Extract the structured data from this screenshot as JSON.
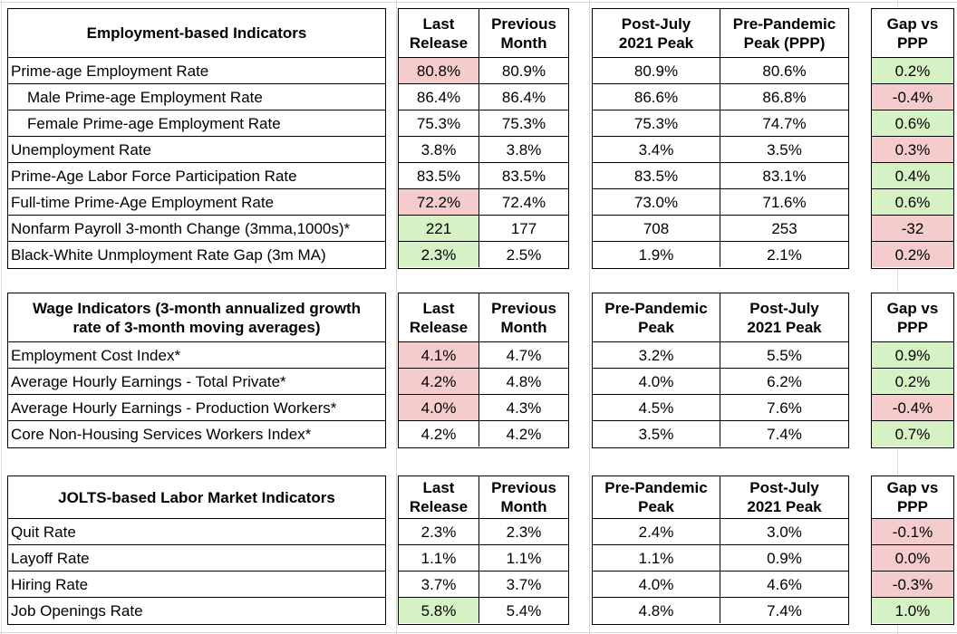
{
  "colors": {
    "pink": "#f4cccc",
    "green": "#d6f2c4",
    "border": "#000000",
    "gridline": "#d9d9d9"
  },
  "tables": [
    {
      "title": "Employment-based Indicators",
      "col_headers": [
        "Last\nRelease",
        "Previous\nMonth",
        "Post-July\n2021 Peak",
        "Pre-Pandemic\nPeak (PPP)",
        "Gap vs\nPPP"
      ],
      "rows": [
        {
          "label": "Prime-age Employment Rate",
          "indent": false,
          "values": [
            "80.8%",
            "80.9%",
            "80.9%",
            "80.6%",
            "0.2%"
          ],
          "highlights": [
            "pink",
            null,
            null,
            null,
            "green"
          ]
        },
        {
          "label": "Male Prime-age Employment Rate",
          "indent": true,
          "values": [
            "86.4%",
            "86.4%",
            "86.6%",
            "86.8%",
            "-0.4%"
          ],
          "highlights": [
            null,
            null,
            null,
            null,
            "pink"
          ]
        },
        {
          "label": "Female Prime-age Employment Rate",
          "indent": true,
          "values": [
            "75.3%",
            "75.3%",
            "75.3%",
            "74.7%",
            "0.6%"
          ],
          "highlights": [
            null,
            null,
            null,
            null,
            "green"
          ]
        },
        {
          "label": "Unemployment Rate",
          "indent": false,
          "values": [
            "3.8%",
            "3.8%",
            "3.4%",
            "3.5%",
            "0.3%"
          ],
          "highlights": [
            null,
            null,
            null,
            null,
            "pink"
          ]
        },
        {
          "label": "Prime-Age Labor Force Participation Rate",
          "indent": false,
          "values": [
            "83.5%",
            "83.5%",
            "83.5%",
            "83.1%",
            "0.4%"
          ],
          "highlights": [
            null,
            null,
            null,
            null,
            "green"
          ]
        },
        {
          "label": "Full-time Prime-Age Employment Rate",
          "indent": false,
          "values": [
            "72.2%",
            "72.4%",
            "73.0%",
            "71.6%",
            "0.6%"
          ],
          "highlights": [
            "pink",
            null,
            null,
            null,
            "green"
          ]
        },
        {
          "label": "Nonfarm Payroll 3-month Change (3mma,1000s)*",
          "indent": false,
          "values": [
            "221",
            "177",
            "708",
            "253",
            "-32"
          ],
          "highlights": [
            "green",
            null,
            null,
            null,
            "pink"
          ]
        },
        {
          "label": "Black-White Unmployment Rate Gap (3m MA)",
          "indent": false,
          "values": [
            "2.3%",
            "2.5%",
            "1.9%",
            "2.1%",
            "0.2%"
          ],
          "highlights": [
            "green",
            null,
            null,
            null,
            "pink"
          ]
        }
      ]
    },
    {
      "title": "Wage Indicators (3-month annualized growth\nrate of 3-month moving averages)",
      "col_headers": [
        "Last\nRelease",
        "Previous\nMonth",
        "Pre-Pandemic\nPeak",
        "Post-July\n2021 Peak",
        "Gap vs\nPPP"
      ],
      "rows": [
        {
          "label": "Employment Cost Index*",
          "indent": false,
          "values": [
            "4.1%",
            "4.7%",
            "3.2%",
            "5.5%",
            "0.9%"
          ],
          "highlights": [
            "pink",
            null,
            null,
            null,
            "green"
          ]
        },
        {
          "label": "Average Hourly Earnings - Total Private*",
          "indent": false,
          "values": [
            "4.2%",
            "4.8%",
            "4.0%",
            "6.2%",
            "0.2%"
          ],
          "highlights": [
            "pink",
            null,
            null,
            null,
            "green"
          ]
        },
        {
          "label": "Average Hourly Earnings - Production Workers*",
          "indent": false,
          "values": [
            "4.0%",
            "4.3%",
            "4.5%",
            "7.6%",
            "-0.4%"
          ],
          "highlights": [
            "pink",
            null,
            null,
            null,
            "pink"
          ]
        },
        {
          "label": "Core Non-Housing Services Workers Index*",
          "indent": false,
          "values": [
            "4.2%",
            "4.2%",
            "3.5%",
            "7.4%",
            "0.7%"
          ],
          "highlights": [
            null,
            null,
            null,
            null,
            "green"
          ]
        }
      ]
    },
    {
      "title": "JOLTS-based Labor Market Indicators",
      "col_headers": [
        "Last\nRelease",
        "Previous\nMonth",
        "Pre-Pandemic\nPeak",
        "Post-July\n2021 Peak",
        "Gap vs\nPPP"
      ],
      "rows": [
        {
          "label": "Quit Rate",
          "indent": false,
          "values": [
            "2.3%",
            "2.3%",
            "2.4%",
            "3.0%",
            "-0.1%"
          ],
          "highlights": [
            null,
            null,
            null,
            null,
            "pink"
          ]
        },
        {
          "label": "Layoff Rate",
          "indent": false,
          "values": [
            "1.1%",
            "1.1%",
            "1.1%",
            "0.9%",
            "0.0%"
          ],
          "highlights": [
            null,
            null,
            null,
            null,
            "pink"
          ]
        },
        {
          "label": "Hiring Rate",
          "indent": false,
          "values": [
            "3.7%",
            "3.7%",
            "4.0%",
            "4.6%",
            "-0.3%"
          ],
          "highlights": [
            null,
            null,
            null,
            null,
            "pink"
          ]
        },
        {
          "label": "Job Openings Rate",
          "indent": false,
          "values": [
            "5.8%",
            "5.4%",
            "4.8%",
            "7.4%",
            "1.0%"
          ],
          "highlights": [
            "green",
            null,
            null,
            null,
            "green"
          ]
        }
      ]
    }
  ]
}
